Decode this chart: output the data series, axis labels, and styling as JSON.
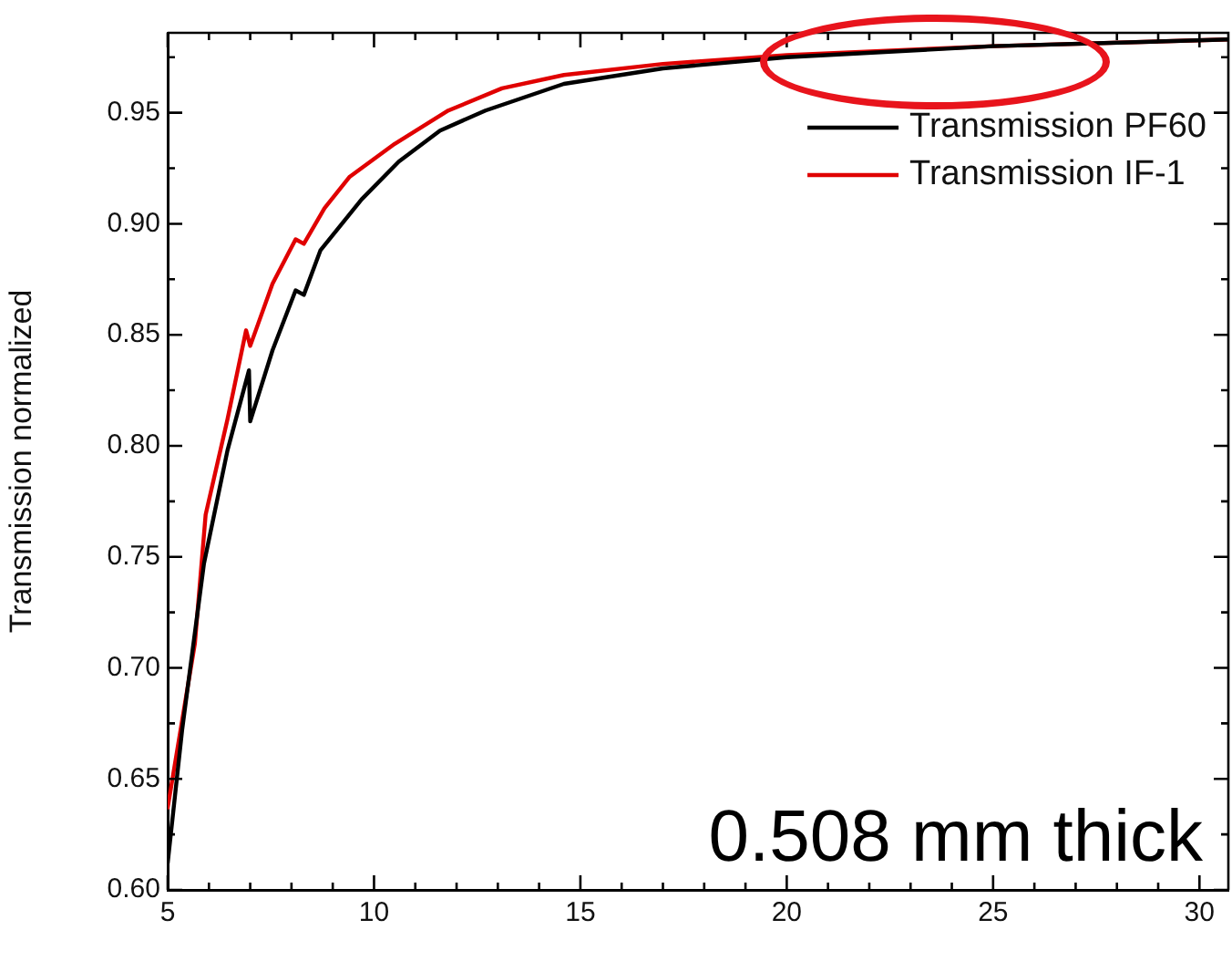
{
  "chart_data": {
    "type": "line",
    "ylabel": "Transmission normalized",
    "x": [
      5,
      5.35,
      5.88,
      6.45,
      6.97,
      7.0,
      7.54,
      8.1,
      8.3,
      8.7,
      9.7,
      10.6,
      11.6,
      12.7,
      14.6,
      17,
      20,
      25,
      30.7
    ],
    "series": [
      {
        "name": "Transmission PF60",
        "color": "#000000",
        "values": [
          0.612,
          0.672,
          0.747,
          0.798,
          0.834,
          0.811,
          0.843,
          0.87,
          0.868,
          0.888,
          0.911,
          0.928,
          0.942,
          0.951,
          0.963,
          0.97,
          0.975,
          0.98,
          0.983
        ]
      },
      {
        "name": "Transmission IF-1",
        "color": "#e00000",
        "x": [
          5,
          5.66,
          5.92,
          6.45,
          6.9,
          7.0,
          7.54,
          8.1,
          8.3,
          8.8,
          9.4,
          10.5,
          11.8,
          13.1,
          14.6,
          17,
          20,
          25,
          30.7
        ],
        "values": [
          0.637,
          0.711,
          0.769,
          0.812,
          0.852,
          0.845,
          0.873,
          0.893,
          0.891,
          0.907,
          0.921,
          0.936,
          0.951,
          0.961,
          0.967,
          0.972,
          0.976,
          0.98,
          0.983
        ]
      }
    ],
    "xlim": [
      5,
      30.7
    ],
    "ylim": [
      0.6,
      0.986
    ],
    "xticks": [
      5,
      {
        "value": 6,
        "label": null
      },
      {
        "value": 7,
        "label": null
      },
      {
        "value": 8,
        "label": null
      },
      {
        "value": 9,
        "label": null
      },
      10,
      {
        "value": 11,
        "label": null
      },
      {
        "value": 12,
        "label": null
      },
      {
        "value": 13,
        "label": null
      },
      {
        "value": 14,
        "label": null
      },
      15,
      {
        "value": 16,
        "label": null
      },
      {
        "value": 17,
        "label": null
      },
      {
        "value": 18,
        "label": null
      },
      {
        "value": 19,
        "label": null
      },
      20,
      {
        "value": 21,
        "label": null
      },
      {
        "value": 22,
        "label": null
      },
      {
        "value": 23,
        "label": null
      },
      {
        "value": 24,
        "label": null
      },
      25,
      {
        "value": 26,
        "label": null
      },
      {
        "value": 27,
        "label": null
      },
      {
        "value": 28,
        "label": null
      },
      {
        "value": 29,
        "label": null
      },
      30
    ],
    "yticks": [
      {
        "value": 0.6,
        "label": "0.60"
      },
      {
        "value": 0.625,
        "label": null
      },
      {
        "value": 0.65,
        "label": "0.65"
      },
      {
        "value": 0.675,
        "label": null
      },
      {
        "value": 0.7,
        "label": "0.70"
      },
      {
        "value": 0.725,
        "label": null
      },
      {
        "value": 0.75,
        "label": "0.75"
      },
      {
        "value": 0.775,
        "label": null
      },
      {
        "value": 0.8,
        "label": "0.80"
      },
      {
        "value": 0.825,
        "label": null
      },
      {
        "value": 0.85,
        "label": "0.85"
      },
      {
        "value": 0.875,
        "label": null
      },
      {
        "value": 0.9,
        "label": "0.90"
      },
      {
        "value": 0.925,
        "label": null
      },
      {
        "value": 0.95,
        "label": "0.95"
      },
      {
        "value": 0.975,
        "label": null
      }
    ],
    "legend": "top right",
    "marker": "none",
    "line_style": "solid",
    "annotations": [
      "0.508 mm thick"
    ]
  }
}
